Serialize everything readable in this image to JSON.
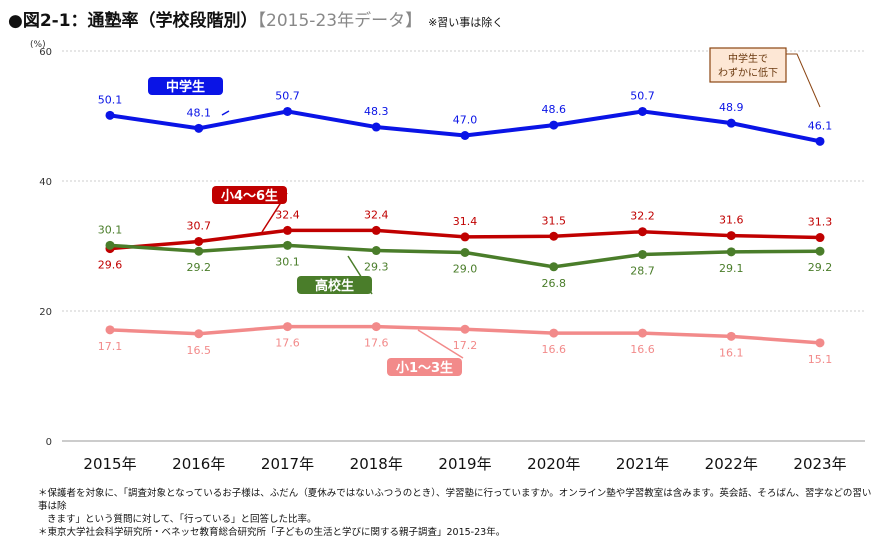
{
  "title": {
    "main": "●図2-1：通塾率（学校段階別）",
    "sub": "【2015-23年データ】",
    "note": "※習い事は除く"
  },
  "chart_data": {
    "type": "line",
    "ylabel": "(%)",
    "ylim": [
      0,
      60
    ],
    "yticks": [
      0,
      20,
      40,
      60
    ],
    "grid": true,
    "categories": [
      "2015年",
      "2016年",
      "2017年",
      "2018年",
      "2019年",
      "2020年",
      "2021年",
      "2022年",
      "2023年"
    ],
    "series": [
      {
        "name": "中学生",
        "color": "#0a14e6",
        "values": [
          50.1,
          48.1,
          50.7,
          48.3,
          47.0,
          48.6,
          50.7,
          48.9,
          46.1
        ],
        "labels": [
          "50.1",
          "48.1",
          "50.7",
          "48.3",
          "47.0",
          "48.6",
          "50.7",
          "48.9",
          "46.1"
        ]
      },
      {
        "name": "小4～6生",
        "color": "#c00000",
        "values": [
          29.6,
          30.7,
          32.4,
          32.4,
          31.4,
          31.5,
          32.2,
          31.6,
          31.3
        ],
        "labels": [
          "29.6",
          "30.7",
          "32.4",
          "32.4",
          "31.4",
          "31.5",
          "32.2",
          "31.6",
          "31.3"
        ]
      },
      {
        "name": "高校生",
        "color": "#4a7d2a",
        "values": [
          30.1,
          29.2,
          30.1,
          29.3,
          29.0,
          26.8,
          28.7,
          29.1,
          29.2
        ],
        "labels": [
          "30.1",
          "29.2",
          "30.1",
          "29.3",
          "29.0",
          "26.8",
          "28.7",
          "29.1",
          "29.2"
        ]
      },
      {
        "name": "小1～3生",
        "color": "#f28a8a",
        "values": [
          17.1,
          16.5,
          17.6,
          17.6,
          17.2,
          16.6,
          16.6,
          16.1,
          15.1
        ],
        "labels": [
          "17.1",
          "16.5",
          "17.6",
          "17.6",
          "17.2",
          "16.6",
          "16.6",
          "16.1",
          "15.1"
        ]
      }
    ],
    "annotation": {
      "lines": [
        "中学生で",
        "わずかに低下"
      ]
    }
  },
  "footnotes": [
    "＊保護者を対象に、「調査対象となっているお子様は、ふだん（夏休みではないふつうのとき）、学習塾に行っていますか。オンライン塾や学習教室は含みます。英会話、そろばん、習字などの習い事は除",
    "きます」という質問に対して、「行っている」と回答した比率。",
    "＊東京大学社会科学研究所・ベネッセ教育総合研究所「子どもの生活と学びに関する親子調査」2015-23年。"
  ]
}
